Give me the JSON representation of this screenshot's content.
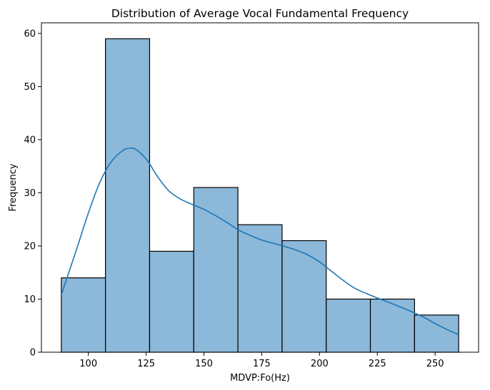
{
  "chart_data": {
    "type": "bar",
    "subtype": "histogram",
    "title": "Distribution of Average Vocal Fundamental Frequency",
    "xlabel": "MDVP:Fo(Hz)",
    "ylabel": "Frequency",
    "bin_edges": [
      88.3,
      107.4,
      126.5,
      145.6,
      164.7,
      183.8,
      202.9,
      222.0,
      241.1,
      260.2
    ],
    "values": [
      14,
      59,
      19,
      31,
      24,
      21,
      10,
      10,
      7
    ],
    "xlim": [
      79.7,
      268.8
    ],
    "ylim": [
      0,
      62
    ],
    "xticks": [
      100,
      125,
      150,
      175,
      200,
      225,
      250
    ],
    "yticks": [
      0,
      10,
      20,
      30,
      40,
      50,
      60
    ],
    "bar_color": "#8cb8d9",
    "bar_edge_color": "#000000",
    "kde": {
      "color": "#1f77b4",
      "x": [
        88.3,
        95,
        100,
        105,
        110,
        115,
        118,
        120,
        123,
        126,
        130,
        135,
        140,
        145,
        150,
        155,
        160,
        165,
        170,
        175,
        180,
        185,
        190,
        195,
        200,
        205,
        210,
        215,
        220,
        225,
        230,
        235,
        240,
        245,
        250,
        255,
        260.2
      ],
      "y": [
        10.8,
        19.5,
        26.2,
        32.0,
        35.9,
        38.0,
        38.4,
        38.3,
        37.3,
        35.8,
        33.0,
        30.3,
        28.8,
        27.8,
        26.9,
        25.7,
        24.4,
        23.0,
        22.0,
        21.1,
        20.5,
        19.9,
        19.2,
        18.3,
        17.0,
        15.3,
        13.6,
        12.1,
        11.1,
        10.2,
        9.4,
        8.5,
        7.6,
        6.6,
        5.4,
        4.3,
        3.3
      ]
    },
    "grid": false,
    "legend": "none"
  }
}
